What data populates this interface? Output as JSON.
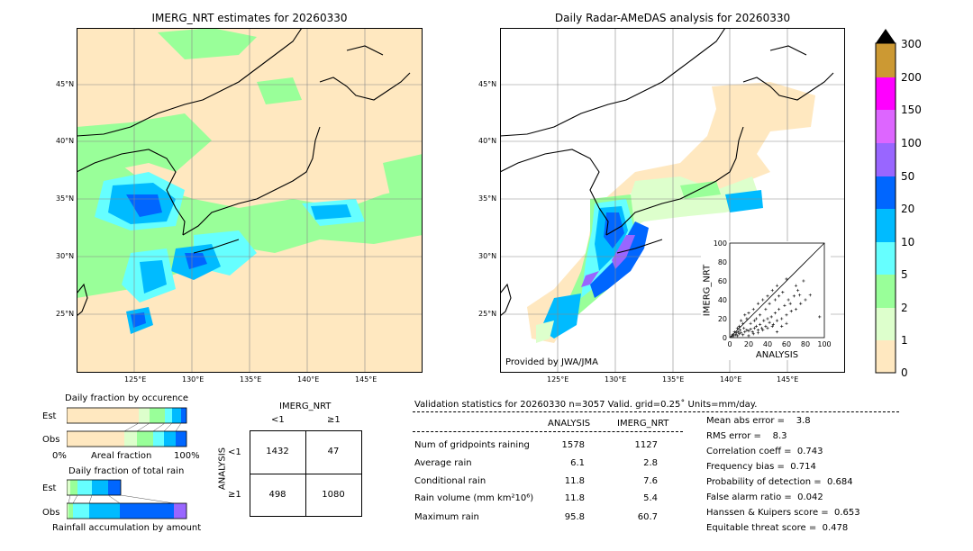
{
  "left_map": {
    "title": "IMERG_NRT estimates for 20260330"
  },
  "right_map": {
    "title": "Daily Radar-AMeDAS analysis for 20260330",
    "credit": "Provided by JWA/JMA"
  },
  "map_axes": {
    "lat_labels": [
      "45°N",
      "40°N",
      "35°N",
      "30°N",
      "25°N"
    ],
    "lon_labels": [
      "125°E",
      "130°E",
      "135°E",
      "140°E",
      "145°E"
    ]
  },
  "colorbar": {
    "labels": [
      "300",
      "200",
      "150",
      "100",
      "50",
      "20",
      "10",
      "5",
      "2",
      "1",
      "0"
    ],
    "colors": [
      "#cc9933",
      "#ff00ff",
      "#dd66ff",
      "#9966ff",
      "#0066ff",
      "#00bbff",
      "#66ffff",
      "#99ff99",
      "#ddffcc",
      "#ffe8c0"
    ]
  },
  "fraction_occurrence": {
    "title": "Daily fraction by occurence",
    "row_labels": [
      "Est",
      "Obs"
    ],
    "x_left": "0%",
    "x_mid": "Areal fraction",
    "x_right": "100%"
  },
  "fraction_total": {
    "title": "Daily fraction of total rain",
    "row_labels": [
      "Est",
      "Obs"
    ],
    "xlabel": "Rainfall accumulation by amount"
  },
  "contingency": {
    "title": "IMERG_NRT",
    "col_labels": [
      "<1",
      "≥1"
    ],
    "row_labels": [
      "<1",
      "≥1"
    ],
    "ylabel": "ANALYSIS",
    "cells": [
      [
        "1432",
        "47"
      ],
      [
        "498",
        "1080"
      ]
    ]
  },
  "validation": {
    "header": "Validation statistics for 20260330  n=3057 Valid. grid=0.25˚ Units=mm/day.",
    "col_analysis": "ANALYSIS",
    "col_imerg": "IMERG_NRT",
    "rows": [
      {
        "label": "Num of gridpoints raining",
        "analysis": "1578",
        "imerg": "1127"
      },
      {
        "label": "Average rain",
        "analysis": "6.1",
        "imerg": "2.8"
      },
      {
        "label": "Conditional rain",
        "analysis": "11.8",
        "imerg": "7.6"
      },
      {
        "label": "Rain volume (mm km²10⁶)",
        "analysis": "11.8",
        "imerg": "5.4"
      },
      {
        "label": "Maximum rain",
        "analysis": "95.8",
        "imerg": "60.7"
      }
    ],
    "scores": [
      "Mean abs error =    3.8",
      "RMS error =    8.3",
      "Correlation coeff =  0.743",
      "Frequency bias =  0.714",
      "Probability of detection =  0.684",
      "False alarm ratio =  0.042",
      "Hanssen & Kuipers score =  0.653",
      "Equitable threat score =  0.478"
    ]
  },
  "chart_data": {
    "type": "scatter",
    "title": "",
    "xlabel": "ANALYSIS",
    "ylabel": "IMERG_NRT",
    "xlim": [
      0,
      100
    ],
    "ylim": [
      0,
      100
    ],
    "x_ticks": [
      "0",
      "20",
      "40",
      "60",
      "80",
      "100"
    ],
    "y_ticks": [
      "0",
      "20",
      "40",
      "60",
      "80",
      "100"
    ],
    "points": [
      [
        2,
        1
      ],
      [
        4,
        2
      ],
      [
        6,
        3
      ],
      [
        8,
        2
      ],
      [
        10,
        4
      ],
      [
        12,
        5
      ],
      [
        14,
        3
      ],
      [
        16,
        6
      ],
      [
        18,
        8
      ],
      [
        20,
        7
      ],
      [
        22,
        9
      ],
      [
        24,
        6
      ],
      [
        26,
        10
      ],
      [
        28,
        12
      ],
      [
        30,
        8
      ],
      [
        32,
        14
      ],
      [
        34,
        10
      ],
      [
        36,
        18
      ],
      [
        38,
        12
      ],
      [
        40,
        20
      ],
      [
        42,
        16
      ],
      [
        44,
        22
      ],
      [
        46,
        14
      ],
      [
        48,
        26
      ],
      [
        50,
        18
      ],
      [
        52,
        30
      ],
      [
        55,
        20
      ],
      [
        58,
        34
      ],
      [
        60,
        24
      ],
      [
        62,
        40
      ],
      [
        65,
        28
      ],
      [
        68,
        44
      ],
      [
        70,
        30
      ],
      [
        72,
        50
      ],
      [
        75,
        36
      ],
      [
        78,
        60
      ],
      [
        80,
        40
      ],
      [
        85,
        45
      ],
      [
        95,
        22
      ],
      [
        12,
        18
      ],
      [
        16,
        24
      ],
      [
        20,
        26
      ],
      [
        25,
        30
      ],
      [
        30,
        36
      ],
      [
        35,
        40
      ],
      [
        40,
        44
      ],
      [
        45,
        50
      ],
      [
        50,
        55
      ],
      [
        60,
        62
      ],
      [
        20,
        2
      ],
      [
        25,
        4
      ],
      [
        30,
        5
      ],
      [
        35,
        8
      ],
      [
        40,
        10
      ],
      [
        45,
        12
      ],
      [
        50,
        6
      ],
      [
        55,
        12
      ],
      [
        60,
        15
      ],
      [
        10,
        12
      ],
      [
        14,
        15
      ],
      [
        18,
        20
      ],
      [
        5,
        6
      ],
      [
        8,
        10
      ],
      [
        28,
        20
      ],
      [
        32,
        24
      ],
      [
        38,
        30
      ],
      [
        42,
        36
      ],
      [
        48,
        40
      ],
      [
        52,
        44
      ],
      [
        56,
        48
      ],
      [
        64,
        36
      ],
      [
        70,
        55
      ],
      [
        74,
        45
      ],
      [
        26,
        18
      ],
      [
        22,
        15
      ],
      [
        15,
        10
      ],
      [
        11,
        8
      ],
      [
        9,
        6
      ],
      [
        7,
        5
      ],
      [
        3,
        3
      ]
    ]
  }
}
